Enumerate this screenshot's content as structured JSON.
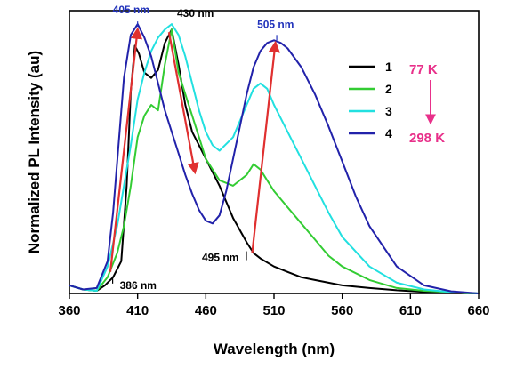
{
  "chart_data": {
    "type": "line",
    "xlabel": "Wavelength (nm)",
    "ylabel": "Normalized PL Intensity (au)",
    "xlim": [
      360,
      660
    ],
    "ylim": [
      0,
      1.05
    ],
    "xticks": [
      360,
      410,
      460,
      510,
      560,
      610,
      660
    ],
    "grid": false,
    "legend_position": "top-right",
    "series": [
      {
        "name": "1",
        "color": "#000000",
        "x": [
          360,
          370,
          380,
          386,
          392,
          398,
          402,
          405,
          408,
          411,
          415,
          420,
          425,
          430,
          435,
          440,
          445,
          450,
          455,
          460,
          470,
          480,
          490,
          495,
          500,
          510,
          520,
          530,
          540,
          550,
          560,
          580,
          600,
          620,
          640,
          660
        ],
        "y": [
          0.03,
          0.015,
          0.01,
          0.03,
          0.06,
          0.12,
          0.4,
          0.75,
          0.92,
          0.89,
          0.82,
          0.8,
          0.83,
          0.93,
          0.98,
          0.85,
          0.7,
          0.6,
          0.55,
          0.5,
          0.4,
          0.28,
          0.19,
          0.15,
          0.13,
          0.1,
          0.08,
          0.06,
          0.05,
          0.04,
          0.03,
          0.02,
          0.012,
          0.006,
          0.003,
          0.0
        ]
      },
      {
        "name": "2",
        "color": "#33cc33",
        "x": [
          360,
          370,
          380,
          388,
          395,
          400,
          405,
          410,
          415,
          420,
          425,
          430,
          435,
          440,
          445,
          450,
          455,
          460,
          470,
          480,
          490,
          495,
          500,
          505,
          510,
          520,
          530,
          540,
          550,
          560,
          580,
          600,
          620,
          640,
          660
        ],
        "y": [
          0.03,
          0.015,
          0.01,
          0.06,
          0.15,
          0.25,
          0.4,
          0.58,
          0.66,
          0.7,
          0.68,
          0.85,
          0.98,
          0.82,
          0.74,
          0.66,
          0.58,
          0.5,
          0.42,
          0.4,
          0.44,
          0.48,
          0.46,
          0.42,
          0.38,
          0.32,
          0.26,
          0.2,
          0.14,
          0.1,
          0.05,
          0.02,
          0.01,
          0.005,
          0.0
        ]
      },
      {
        "name": "3",
        "color": "#22e0e0",
        "x": [
          360,
          370,
          380,
          388,
          395,
          400,
          405,
          410,
          415,
          420,
          425,
          430,
          435,
          440,
          445,
          450,
          455,
          460,
          465,
          470,
          480,
          490,
          495,
          500,
          505,
          510,
          520,
          530,
          540,
          550,
          560,
          580,
          600,
          620,
          640,
          660
        ],
        "y": [
          0.03,
          0.015,
          0.01,
          0.1,
          0.25,
          0.4,
          0.55,
          0.72,
          0.82,
          0.9,
          0.95,
          0.98,
          1.0,
          0.96,
          0.88,
          0.78,
          0.68,
          0.6,
          0.55,
          0.53,
          0.58,
          0.7,
          0.76,
          0.78,
          0.76,
          0.7,
          0.6,
          0.5,
          0.4,
          0.3,
          0.21,
          0.1,
          0.04,
          0.015,
          0.005,
          0.0
        ]
      },
      {
        "name": "4",
        "color": "#2222aa",
        "x": [
          360,
          370,
          380,
          388,
          392,
          396,
          400,
          405,
          410,
          415,
          420,
          425,
          430,
          435,
          440,
          445,
          450,
          455,
          460,
          465,
          470,
          475,
          480,
          485,
          490,
          495,
          500,
          505,
          510,
          515,
          520,
          530,
          540,
          550,
          560,
          570,
          580,
          600,
          620,
          640,
          660
        ],
        "y": [
          0.03,
          0.015,
          0.02,
          0.12,
          0.3,
          0.55,
          0.8,
          0.96,
          1.0,
          0.95,
          0.88,
          0.78,
          0.68,
          0.6,
          0.52,
          0.44,
          0.37,
          0.31,
          0.27,
          0.26,
          0.29,
          0.38,
          0.5,
          0.62,
          0.74,
          0.84,
          0.9,
          0.93,
          0.94,
          0.93,
          0.91,
          0.84,
          0.74,
          0.62,
          0.49,
          0.36,
          0.25,
          0.1,
          0.03,
          0.008,
          0.0
        ]
      }
    ],
    "peak_labels": [
      {
        "text": "405 nm",
        "x": 410,
        "y": 1.0,
        "color": "#2233bb"
      },
      {
        "text": "430 nm",
        "x": 435,
        "y": 0.98,
        "color": "#000000"
      },
      {
        "text": "505 nm",
        "x": 512,
        "y": 0.94,
        "color": "#2233bb"
      },
      {
        "text": "386 nm",
        "x": 393,
        "y": 0.05,
        "color": "#000000"
      },
      {
        "text": "495 nm",
        "x": 495,
        "y": 0.15,
        "color": "#000000"
      }
    ],
    "arrows": [
      {
        "from": [
          390,
          0.08
        ],
        "to": [
          410,
          0.98
        ],
        "color": "#e03030"
      },
      {
        "from": [
          433,
          0.97
        ],
        "to": [
          452,
          0.45
        ],
        "color": "#e03030"
      },
      {
        "from": [
          494,
          0.15
        ],
        "to": [
          511,
          0.93
        ],
        "color": "#e03030"
      }
    ],
    "temperature": {
      "high_temp": "77 K",
      "low_temp": "298 K",
      "color": "#e8308a"
    }
  }
}
